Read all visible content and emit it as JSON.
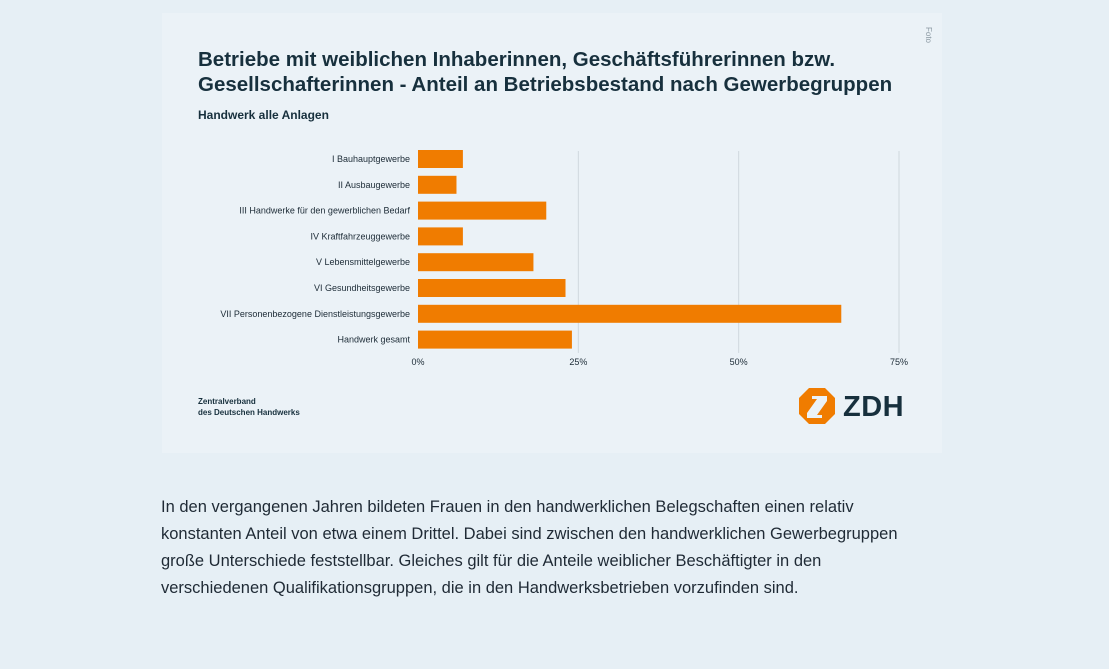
{
  "figure": {
    "foto_label": "Foto",
    "organization": [
      "Zentralverband",
      "des Deutschen Handwerks"
    ],
    "logo_text": "ZDH",
    "brand_color": "#f07c00"
  },
  "chart_data": {
    "type": "bar",
    "orientation": "horizontal",
    "title": "Betriebe mit weiblichen Inhaberinnen, Geschäftsführerinnen bzw. Gesellschafterinnen - Anteil an Betriebsbestand nach Gewerbegruppen",
    "subtitle": "Handwerk alle Anlagen",
    "categories": [
      "I Bauhauptgewerbe",
      "II Ausbaugewerbe",
      "III Handwerke für den gewerblichen Bedarf",
      "IV Kraftfahrzeuggewerbe",
      "V Lebensmittelgewerbe",
      "VI Gesundheitsgewerbe",
      "VII Personenbezogene Dienstleistungsgewerbe",
      "Handwerk gesamt"
    ],
    "values": [
      7,
      6,
      20,
      7,
      18,
      23,
      66,
      24
    ],
    "unit": "%",
    "xlim": [
      0,
      75
    ],
    "xticks": [
      0,
      25,
      50,
      75
    ],
    "xtick_labels": [
      "0%",
      "25%",
      "50%",
      "75%"
    ],
    "grid": true,
    "bar_color": "#f07c00"
  },
  "article": {
    "paragraph": "In den vergangenen Jahren bildeten Frauen in den handwerklichen Belegschaften einen relativ konstanten Anteil von etwa einem Drittel. Dabei sind zwischen den handwerklichen Gewerbegruppen große Unterschiede feststellbar. Gleiches gilt für die Anteile weiblicher Beschäftigter in den verschiedenen Qualifikationsgruppen, die in den Handwerksbetrieben vorzufinden sind."
  }
}
